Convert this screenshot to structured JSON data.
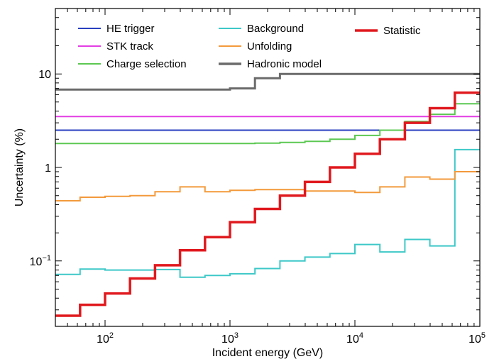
{
  "chart_data": {
    "type": "line",
    "title": "",
    "xlabel": "Incident energy (GeV)",
    "ylabel": "Uncertainty (%)",
    "xscale": "log",
    "yscale": "log",
    "xlim": [
      40,
      100000
    ],
    "ylim": [
      0.02,
      50
    ],
    "grid": false,
    "legend_position": "top",
    "x_ticks": [
      {
        "base": "10",
        "exp": "2",
        "value": 100
      },
      {
        "base": "10",
        "exp": "3",
        "value": 1000
      },
      {
        "base": "10",
        "exp": "4",
        "value": 10000
      },
      {
        "base": "10",
        "exp": "5",
        "value": 100000
      }
    ],
    "y_ticks": [
      {
        "base": "10",
        "exp": "−1",
        "value": 0.1
      },
      {
        "text": "1",
        "value": 1
      },
      {
        "text": "10",
        "value": 10
      }
    ],
    "bin_edges": [
      40,
      63.1,
      100,
      158.5,
      251.2,
      398.1,
      631,
      1000,
      1585,
      2512,
      3981,
      6310,
      10000,
      15849,
      25119,
      39811,
      63096,
      100000
    ],
    "series": [
      {
        "name": "HE trigger",
        "color": "#2a3fbf",
        "width": 2,
        "values": [
          2.5,
          2.5,
          2.5,
          2.5,
          2.5,
          2.5,
          2.5,
          2.5,
          2.5,
          2.5,
          2.5,
          2.5,
          2.5,
          2.5,
          2.5,
          2.5,
          2.5
        ]
      },
      {
        "name": "STK track",
        "color": "#e33ee3",
        "width": 2,
        "values": [
          3.5,
          3.5,
          3.5,
          3.5,
          3.5,
          3.5,
          3.5,
          3.5,
          3.5,
          3.5,
          3.5,
          3.5,
          3.5,
          3.5,
          3.5,
          3.5,
          3.5
        ]
      },
      {
        "name": "Charge selection",
        "color": "#5cc852",
        "width": 2,
        "values": [
          1.8,
          1.8,
          1.8,
          1.8,
          1.8,
          1.8,
          1.8,
          1.8,
          1.82,
          1.85,
          1.9,
          2.0,
          2.2,
          2.5,
          3.1,
          3.7,
          4.8
        ]
      },
      {
        "name": "Background",
        "color": "#3ec8c8",
        "width": 2,
        "values": [
          0.072,
          0.082,
          0.08,
          0.08,
          0.081,
          0.067,
          0.07,
          0.073,
          0.083,
          0.1,
          0.11,
          0.12,
          0.15,
          0.125,
          0.17,
          0.145,
          1.55
        ]
      },
      {
        "name": "Unfolding",
        "color": "#f39a3c",
        "width": 2,
        "values": [
          0.44,
          0.48,
          0.49,
          0.5,
          0.55,
          0.62,
          0.55,
          0.57,
          0.58,
          0.58,
          0.56,
          0.56,
          0.54,
          0.62,
          0.79,
          0.75,
          0.9
        ]
      },
      {
        "name": "Hadronic model",
        "color": "#6b6b6b",
        "width": 3,
        "values": [
          6.8,
          6.8,
          6.8,
          6.8,
          6.8,
          6.8,
          6.8,
          7.0,
          9.0,
          10,
          10,
          10,
          10,
          10,
          10,
          10,
          10
        ]
      },
      {
        "name": "Statistic",
        "color": "#e0191e",
        "width": 3.5,
        "values": [
          0.026,
          0.034,
          0.045,
          0.065,
          0.09,
          0.13,
          0.18,
          0.26,
          0.36,
          0.5,
          0.7,
          1.0,
          1.4,
          2.0,
          3.0,
          4.3,
          6.3
        ]
      }
    ],
    "legend": [
      {
        "name": "HE trigger",
        "color": "#2a3fbf"
      },
      {
        "name": "STK track",
        "color": "#e33ee3"
      },
      {
        "name": "Charge selection",
        "color": "#5cc852"
      },
      {
        "name": "Background",
        "color": "#3ec8c8"
      },
      {
        "name": "Unfolding",
        "color": "#f39a3c"
      },
      {
        "name": "Hadronic model",
        "color": "#6b6b6b"
      },
      {
        "name": "Statistic",
        "color": "#e0191e"
      }
    ]
  }
}
